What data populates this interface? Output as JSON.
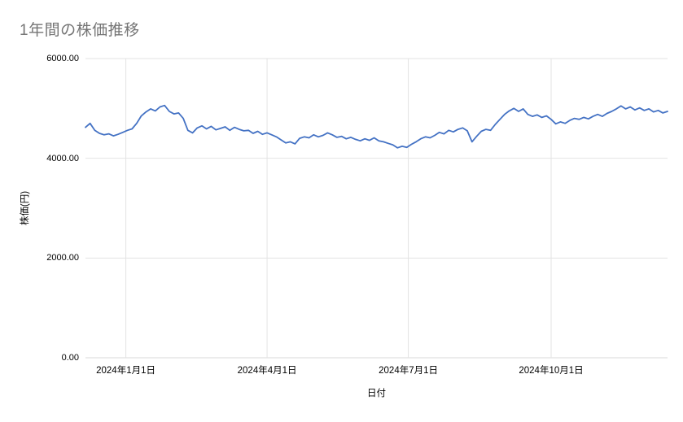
{
  "page": {
    "background": "#ffffff"
  },
  "chart_data": {
    "type": "line",
    "title": "1年間の株価推移",
    "xlabel": "日付",
    "ylabel": "株価(円)",
    "ylim": [
      0,
      6000
    ],
    "y_ticks": [
      6000,
      4000,
      2000,
      0
    ],
    "y_tick_labels": [
      "6000.00",
      "4000.00",
      "2000.00",
      "0.00"
    ],
    "x_tick_labels": [
      "2024年1月1日",
      "2024年4月1日",
      "2024年7月1日",
      "2024年10月1日"
    ],
    "x_tick_days": [
      26,
      117,
      208,
      300
    ],
    "x_range_days": [
      0,
      375
    ],
    "grid": true,
    "legend": "none",
    "line_color": "#4472c4",
    "grid_color": "#e3e3e3",
    "axis_line_color": "#d9d9d9",
    "title_color": "#757575",
    "series": [
      {
        "name": "株価",
        "x": [
          0,
          3,
          6,
          9,
          12,
          15,
          18,
          21,
          24,
          27,
          30,
          33,
          36,
          39,
          42,
          45,
          48,
          51,
          54,
          57,
          60,
          63,
          66,
          69,
          72,
          75,
          78,
          81,
          84,
          87,
          90,
          93,
          96,
          99,
          102,
          105,
          108,
          111,
          114,
          117,
          120,
          123,
          126,
          129,
          132,
          135,
          138,
          141,
          144,
          147,
          150,
          153,
          156,
          159,
          162,
          165,
          168,
          171,
          174,
          177,
          180,
          183,
          186,
          189,
          192,
          195,
          198,
          201,
          204,
          207,
          210,
          213,
          216,
          219,
          222,
          225,
          228,
          231,
          234,
          237,
          240,
          243,
          246,
          249,
          252,
          255,
          258,
          261,
          264,
          267,
          270,
          273,
          276,
          279,
          282,
          285,
          288,
          291,
          294,
          297,
          300,
          303,
          306,
          309,
          312,
          315,
          318,
          321,
          324,
          327,
          330,
          333,
          336,
          339,
          342,
          345,
          348,
          351,
          354,
          357,
          360,
          363,
          366,
          369,
          372,
          375
        ],
        "values": [
          4620,
          4700,
          4560,
          4500,
          4470,
          4490,
          4450,
          4480,
          4520,
          4560,
          4590,
          4700,
          4850,
          4930,
          4990,
          4950,
          5030,
          5060,
          4940,
          4890,
          4910,
          4800,
          4560,
          4510,
          4610,
          4650,
          4590,
          4640,
          4570,
          4600,
          4630,
          4560,
          4620,
          4580,
          4550,
          4560,
          4500,
          4540,
          4480,
          4510,
          4470,
          4430,
          4370,
          4310,
          4330,
          4290,
          4400,
          4430,
          4410,
          4470,
          4430,
          4460,
          4510,
          4470,
          4420,
          4440,
          4390,
          4420,
          4380,
          4350,
          4390,
          4360,
          4410,
          4350,
          4330,
          4300,
          4270,
          4210,
          4240,
          4220,
          4280,
          4330,
          4390,
          4430,
          4410,
          4460,
          4520,
          4490,
          4560,
          4530,
          4580,
          4610,
          4550,
          4330,
          4440,
          4540,
          4580,
          4560,
          4680,
          4780,
          4880,
          4950,
          5000,
          4940,
          4990,
          4880,
          4840,
          4870,
          4820,
          4850,
          4780,
          4690,
          4730,
          4700,
          4760,
          4800,
          4780,
          4820,
          4790,
          4840,
          4880,
          4840,
          4900,
          4940,
          4990,
          5050,
          4990,
          5030,
          4970,
          5010,
          4960,
          4990,
          4930,
          4960,
          4910,
          4940
        ]
      }
    ]
  }
}
